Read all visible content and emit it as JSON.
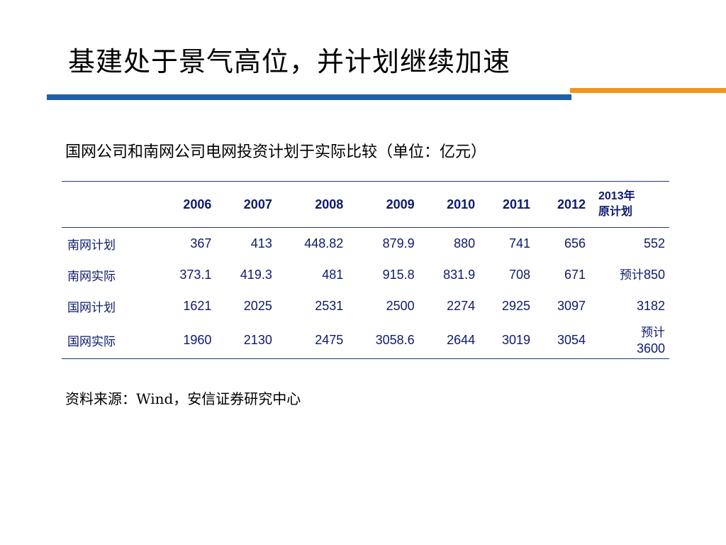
{
  "slide": {
    "title": "基建处于景气高位，并计划继续加速",
    "subtitle": "国网公司和南网公司电网投资计划于实际比较（单位：亿元）",
    "source": "资料来源：Wind，安信证券研究中心"
  },
  "table": {
    "header": {
      "blank": "",
      "years": [
        "2006",
        "2007",
        "2008",
        "2009",
        "2010",
        "2011",
        "2012"
      ],
      "last_line1": "2013年",
      "last_line2": "原计划"
    },
    "rows": [
      {
        "label": "南网计划",
        "values": [
          "367",
          "413",
          "448.82",
          "879.9",
          "880",
          "741",
          "656"
        ],
        "last_note": "",
        "last_value": "552"
      },
      {
        "label": "南网实际",
        "values": [
          "373.1",
          "419.3",
          "481",
          "915.8",
          "831.9",
          "708",
          "671"
        ],
        "last_note": "预计",
        "last_value": "850"
      },
      {
        "label": "国网计划",
        "values": [
          "1621",
          "2025",
          "2531",
          "2500",
          "2274",
          "2925",
          "3097"
        ],
        "last_note": "",
        "last_value": "3182"
      },
      {
        "label": "国网实际",
        "values": [
          "1960",
          "2130",
          "2475",
          "3058.6",
          "2644",
          "3019",
          "3054"
        ],
        "last_note": "预计",
        "last_value": "3600"
      }
    ]
  },
  "colors": {
    "blue_bar": "#1f5fa8",
    "orange_bar": "#f2951b",
    "table_text": "#0d1a6e"
  }
}
